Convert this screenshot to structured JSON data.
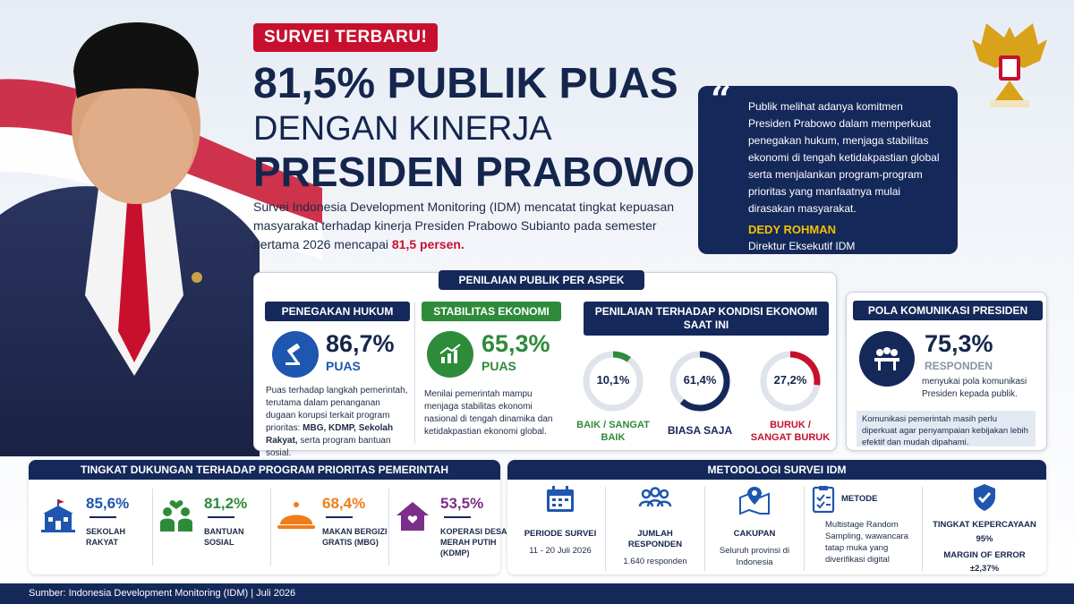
{
  "header": {
    "badge": "SURVEI TERBARU!",
    "title_line1": "81,5% PUBLIK PUAS",
    "title_line2": "DENGAN KINERJA",
    "title_line3": "PRESIDEN PRABOWO",
    "intro_text": "Survei Indonesia Development Monitoring (IDM) mencatat tingkat kepuasan masyarakat terhadap kinerja Presiden Prabowo Subianto pada semester pertama 2026 mencapai ",
    "intro_highlight": "81,5 persen."
  },
  "quote": {
    "text": "Publik melihat adanya komitmen Presiden Prabowo dalam memperkuat penegakan hukum, menjaga stabilitas ekonomi di tengah ketidakpastian global serta menjalankan program-program prioritas yang manfaatnya mulai dirasakan masyarakat.",
    "name": "DEDY ROHMAN",
    "role": "Direktur Eksekutif IDM"
  },
  "aspects": {
    "title": "PENILAIAN PUBLIK PER ASPEK",
    "hukum": {
      "title": "PENEGAKAN HUKUM",
      "percent": "86,7%",
      "unit": "PUAS",
      "desc": "Puas terhadap langkah pemerintah, terutama dalam penanganan dugaan korupsi terkait program prioritas:",
      "desc_bold": "MBG, KDMP, Sekolah Rakyat,",
      "desc_tail": "serta program bantuan sosial."
    },
    "ekonomi": {
      "title": "STABILITAS EKONOMI",
      "percent": "65,3%",
      "unit": "PUAS",
      "desc": "Menilai pemerintah mampu menjaga stabilitas ekonomi nasional di tengah dinamika dan ketidakpastian ekonomi global."
    },
    "kondisi": {
      "title": "PENILAIAN TERHADAP KONDISI EKONOMI SAAT INI",
      "items": [
        {
          "value": "10,1%",
          "fraction": 0.101,
          "label": "BAIK / SANGAT BAIK",
          "color": "#2e8b3a"
        },
        {
          "value": "61,4%",
          "fraction": 0.614,
          "label": "BIASA SAJA",
          "color": "#15285a"
        },
        {
          "value": "27,2%",
          "fraction": 0.272,
          "label": "BURUK / SANGAT BURUK",
          "color": "#c8102e"
        }
      ]
    }
  },
  "pola": {
    "title": "POLA KOMUNIKASI PRESIDEN",
    "percent": "75,3%",
    "unit": "RESPONDEN",
    "desc": "menyukai pola komunikasi Presiden kepada publik.",
    "note": "Komunikasi pemerintah masih perlu diperkuat agar penyampaian kebijakan lebih efektif dan mudah dipahami."
  },
  "dukungan": {
    "title": "TINGKAT DUKUNGAN TERHADAP PROGRAM PRIORITAS PEMERINTAH",
    "items": [
      {
        "percent": "85,6%",
        "label": "SEKOLAH RAKYAT",
        "icon": "school-icon",
        "color": "#1e56b0"
      },
      {
        "percent": "81,2%",
        "label": "BANTUAN SOSIAL",
        "icon": "family-icon",
        "color": "#2e8b3a"
      },
      {
        "percent": "68,4%",
        "label": "MAKAN BERGIZI GRATIS (MBG)",
        "icon": "food-icon",
        "color": "#ef7d1a"
      },
      {
        "percent": "53,5%",
        "label": "KOPERASI DESA MERAH PUTIH (KDMP)",
        "icon": "house-icon",
        "color": "#7a2f8a"
      }
    ]
  },
  "metodologi": {
    "title": "METODOLOGI SURVEI IDM",
    "periode": {
      "head": "PERIODE SURVEI",
      "value": "11 - 20 Juli 2026"
    },
    "responden": {
      "head": "JUMLAH RESPONDEN",
      "value": "1.640 responden"
    },
    "cakupan": {
      "head": "CAKUPAN",
      "value": "Seluruh provinsi di Indonesia"
    },
    "metode": {
      "head": "METODE",
      "value": "Multistage Random Sampling, wawancara tatap muka yang diverifikasi digital"
    },
    "kepercayaan": {
      "head": "TINGKAT KEPERCAYAAN",
      "value": "95%",
      "head2": "MARGIN OF ERROR",
      "value2": "±2,37%"
    }
  },
  "footer": "Sumber: Indonesia Development Monitoring (IDM)   |   Juli 2026"
}
